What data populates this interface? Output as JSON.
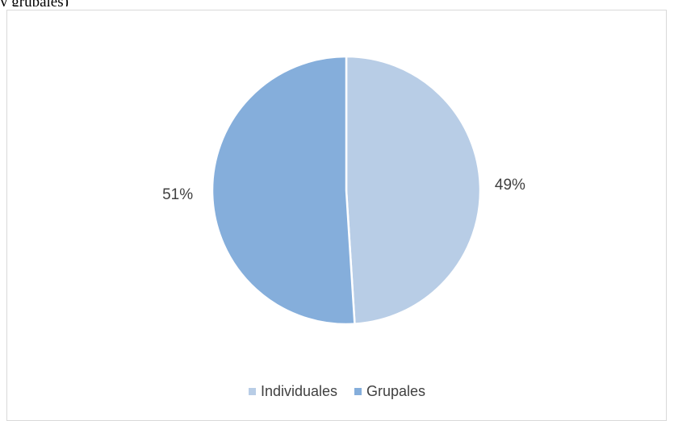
{
  "page_text": "y            grupales)",
  "chart_data": {
    "type": "pie",
    "categories": [
      "Individuales",
      "Grupales"
    ],
    "values": [
      49,
      51
    ],
    "labels": [
      "49%",
      "51%"
    ],
    "colors": [
      "#b8cde6",
      "#85aedb"
    ],
    "legend_position": "bottom",
    "start_angle_deg": 0,
    "direction": "clockwise"
  }
}
